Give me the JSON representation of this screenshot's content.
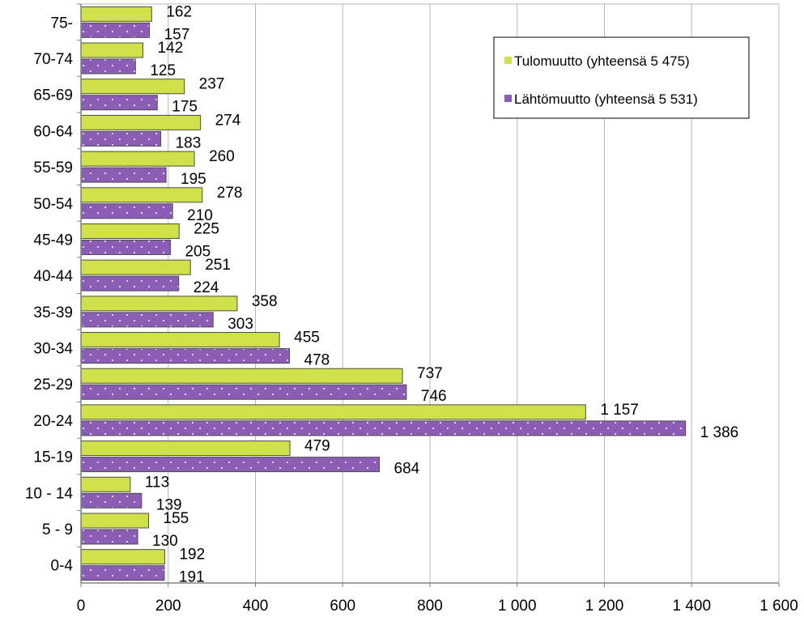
{
  "colors": {
    "tulo": "#cfe04a",
    "lahto": "#8c5db5",
    "grid": "#b8b8b8",
    "axis": "#808080",
    "legend_border": "#000000"
  },
  "chart_data": {
    "type": "bar",
    "orientation": "horizontal",
    "categories": [
      "75-",
      "70-74",
      "65-69",
      "60-64",
      "55-59",
      "50-54",
      "45-49",
      "40-44",
      "35-39",
      "30-34",
      "25-29",
      "20-24",
      "15-19",
      "10 - 14",
      "5 - 9",
      "0-4"
    ],
    "series": [
      {
        "name": "Tulomuutto (yhteensä 5 475)",
        "color": "#cfe04a",
        "values": [
          162,
          142,
          237,
          274,
          260,
          278,
          225,
          251,
          358,
          455,
          737,
          1157,
          479,
          113,
          155,
          192
        ],
        "labels": [
          "162",
          "142",
          "237",
          "274",
          "260",
          "278",
          "225",
          "251",
          "358",
          "455",
          "737",
          "1 157",
          "479",
          "113",
          "155",
          "192"
        ]
      },
      {
        "name": "Lähtömuutto (yhteensä 5 531)",
        "color": "#8c5db5",
        "values": [
          157,
          125,
          175,
          183,
          195,
          210,
          205,
          224,
          303,
          478,
          746,
          1386,
          684,
          139,
          130,
          191
        ],
        "labels": [
          "157",
          "125",
          "175",
          "183",
          "195",
          "210",
          "205",
          "224",
          "303",
          "478",
          "746",
          "1 386",
          "684",
          "139",
          "130",
          "191"
        ]
      }
    ],
    "xlim": [
      0,
      1600
    ],
    "x_ticks": [
      0,
      200,
      400,
      600,
      800,
      1000,
      1200,
      1400,
      1600
    ],
    "x_tick_labels": [
      "0",
      "200",
      "400",
      "600",
      "800",
      "1 000",
      "1 200",
      "1 400",
      "1 600"
    ],
    "grid": true,
    "legend_position": "top-right"
  }
}
